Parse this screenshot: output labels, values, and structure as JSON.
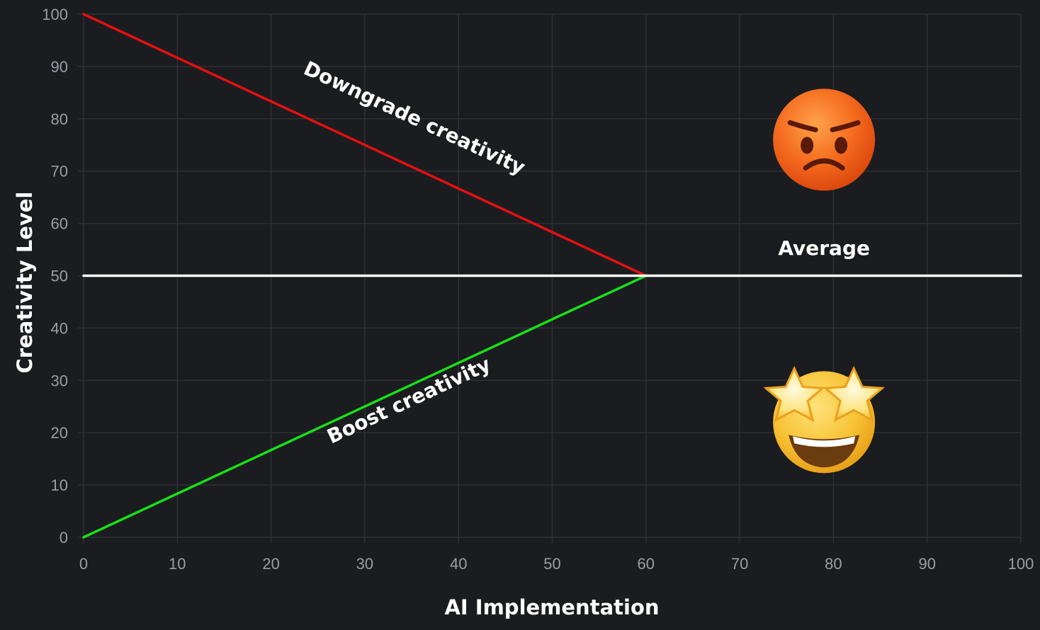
{
  "chart_data": {
    "type": "line",
    "xlabel": "AI Implementation",
    "ylabel": "Creativity Level",
    "xlim": [
      0,
      100
    ],
    "ylim": [
      0,
      100
    ],
    "x_ticks": [
      0,
      10,
      20,
      30,
      40,
      50,
      60,
      70,
      80,
      90,
      100
    ],
    "y_ticks": [
      0,
      10,
      20,
      30,
      40,
      50,
      60,
      70,
      80,
      90,
      100
    ],
    "grid": true,
    "series": [
      {
        "key": "downgrade",
        "color": "#e51010",
        "x": [
          0,
          60
        ],
        "y": [
          100,
          50
        ]
      },
      {
        "key": "boost",
        "color": "#18e018",
        "x": [
          0,
          60
        ],
        "y": [
          0,
          50
        ]
      },
      {
        "key": "average",
        "color": "#ffffff",
        "x": [
          0,
          100
        ],
        "y": [
          50,
          50
        ]
      }
    ],
    "annotations": [
      {
        "key": "downgrade",
        "text": "Downgrade creativity",
        "x": 35,
        "y": 79
      },
      {
        "key": "boost",
        "text": "Boost creativity",
        "x": 35,
        "y": 25
      },
      {
        "key": "average",
        "text": "Average",
        "x": 79,
        "y": 54
      }
    ],
    "emoji": [
      {
        "key": "angry",
        "icon": "angry-face-icon",
        "x": 79,
        "y": 76
      },
      {
        "key": "star",
        "icon": "star-struck-face-icon",
        "x": 79,
        "y": 22
      }
    ]
  }
}
